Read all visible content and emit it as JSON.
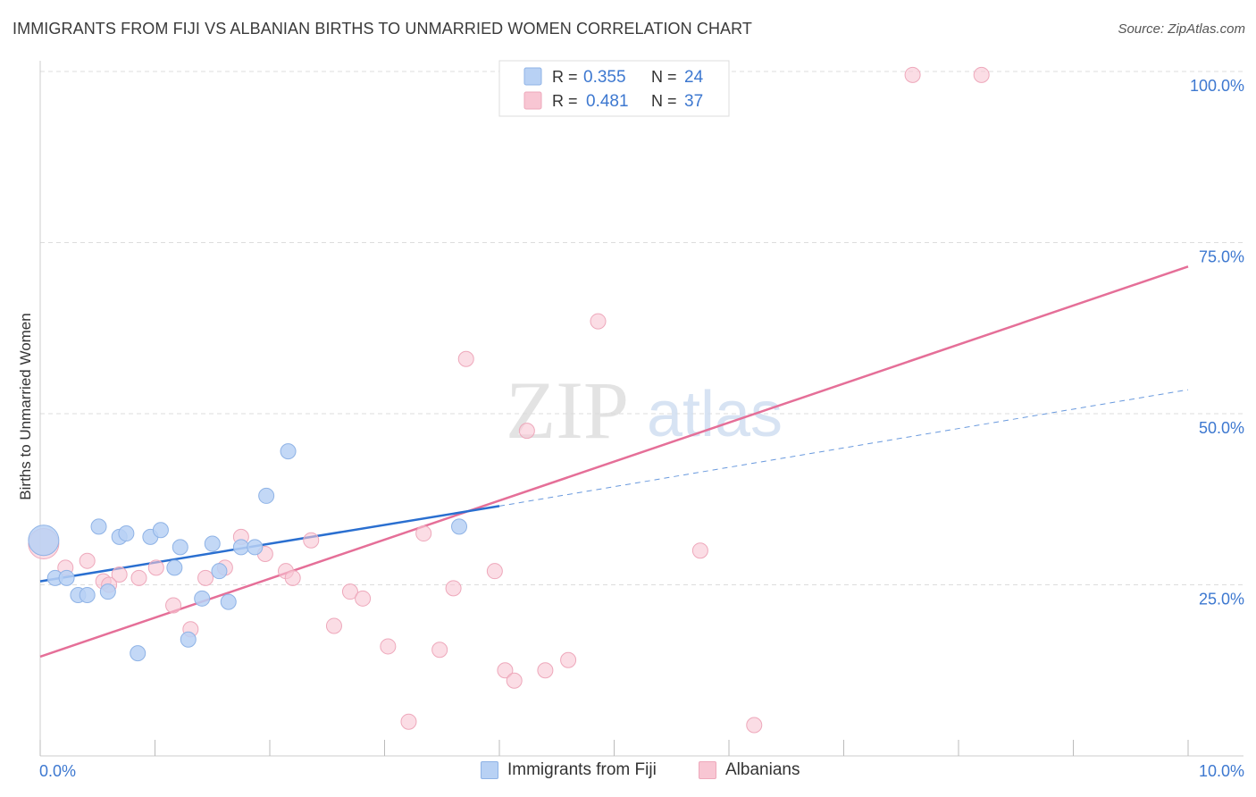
{
  "header": {
    "title": "IMMIGRANTS FROM FIJI VS ALBANIAN BIRTHS TO UNMARRIED WOMEN CORRELATION CHART",
    "source": "Source: ZipAtlas.com"
  },
  "watermark": {
    "zip": "ZIP",
    "atlas": "atlas"
  },
  "colors": {
    "fiji_fill": "#b8d1f4",
    "fiji_stroke": "#8fb3e6",
    "fiji_line": "#2a6fd0",
    "alb_fill": "#f8c6d3",
    "alb_stroke": "#eea8bb",
    "alb_line": "#e56f98",
    "value_blue": "#3d78d0",
    "axis_label": "#3d78d0",
    "grid": "#dddddd"
  },
  "legend": {
    "rows": [
      {
        "r_label": "R =",
        "r_value": "0.355",
        "n_label": "N =",
        "n_value": "24"
      },
      {
        "r_label": "R =",
        "r_value": "0.481",
        "n_label": "N =",
        "n_value": "37"
      }
    ]
  },
  "chart_data": {
    "type": "scatter",
    "title": "IMMIGRANTS FROM FIJI VS ALBANIAN BIRTHS TO UNMARRIED WOMEN CORRELATION CHART",
    "xlabel": "",
    "ylabel": "Births to Unmarried Women",
    "xlim": [
      0,
      10
    ],
    "ylim": [
      0,
      100
    ],
    "x_tick_labels": [
      "0.0%",
      "10.0%"
    ],
    "y_tick_labels": [
      "25.0%",
      "50.0%",
      "75.0%",
      "100.0%"
    ],
    "y_ticks": [
      25,
      50,
      75,
      100
    ],
    "grid": true,
    "legend_position": "top-center",
    "series": [
      {
        "name": "Immigrants from Fiji",
        "R": 0.355,
        "N": 24,
        "trend": {
          "x": [
            0,
            4.0
          ],
          "y": [
            25.5,
            36.5
          ],
          "dashed_to": [
            10.0,
            53.5
          ]
        },
        "points": [
          {
            "x": 0.03,
            "y": 31.5,
            "big": true
          },
          {
            "x": 0.13,
            "y": 26.0
          },
          {
            "x": 0.23,
            "y": 26.0
          },
          {
            "x": 0.33,
            "y": 23.5
          },
          {
            "x": 0.41,
            "y": 23.5
          },
          {
            "x": 0.51,
            "y": 33.5
          },
          {
            "x": 0.59,
            "y": 24.0
          },
          {
            "x": 0.69,
            "y": 32.0
          },
          {
            "x": 0.75,
            "y": 32.5
          },
          {
            "x": 0.85,
            "y": 15.0
          },
          {
            "x": 0.96,
            "y": 32.0
          },
          {
            "x": 1.05,
            "y": 33.0
          },
          {
            "x": 1.17,
            "y": 27.5
          },
          {
            "x": 1.22,
            "y": 30.5
          },
          {
            "x": 1.29,
            "y": 17.0
          },
          {
            "x": 1.41,
            "y": 23.0
          },
          {
            "x": 1.5,
            "y": 31.0
          },
          {
            "x": 1.56,
            "y": 27.0
          },
          {
            "x": 1.64,
            "y": 22.5
          },
          {
            "x": 1.75,
            "y": 30.5
          },
          {
            "x": 1.87,
            "y": 30.5
          },
          {
            "x": 1.97,
            "y": 38.0
          },
          {
            "x": 2.16,
            "y": 44.5
          },
          {
            "x": 3.65,
            "y": 33.5
          }
        ]
      },
      {
        "name": "Albanians",
        "R": 0.481,
        "N": 37,
        "trend": {
          "x": [
            0,
            10.0
          ],
          "y": [
            14.5,
            71.5
          ]
        },
        "points": [
          {
            "x": 0.03,
            "y": 31.0,
            "big": true
          },
          {
            "x": 0.22,
            "y": 27.5
          },
          {
            "x": 0.41,
            "y": 28.5
          },
          {
            "x": 0.55,
            "y": 25.5
          },
          {
            "x": 0.69,
            "y": 26.5
          },
          {
            "x": 0.86,
            "y": 26.0
          },
          {
            "x": 1.01,
            "y": 27.5
          },
          {
            "x": 1.16,
            "y": 22.0
          },
          {
            "x": 1.31,
            "y": 18.5
          },
          {
            "x": 1.44,
            "y": 26.0
          },
          {
            "x": 1.61,
            "y": 27.5
          },
          {
            "x": 1.75,
            "y": 32.0
          },
          {
            "x": 1.96,
            "y": 29.5
          },
          {
            "x": 2.14,
            "y": 27.0
          },
          {
            "x": 2.2,
            "y": 26.0
          },
          {
            "x": 2.36,
            "y": 31.5
          },
          {
            "x": 2.56,
            "y": 19.0
          },
          {
            "x": 2.7,
            "y": 24.0
          },
          {
            "x": 2.81,
            "y": 23.0
          },
          {
            "x": 3.03,
            "y": 16.0
          },
          {
            "x": 3.21,
            "y": 5.0
          },
          {
            "x": 3.34,
            "y": 32.5
          },
          {
            "x": 3.48,
            "y": 15.5
          },
          {
            "x": 3.6,
            "y": 24.5
          },
          {
            "x": 3.71,
            "y": 58.0
          },
          {
            "x": 3.96,
            "y": 27.0
          },
          {
            "x": 4.05,
            "y": 12.5
          },
          {
            "x": 4.13,
            "y": 11.0
          },
          {
            "x": 4.24,
            "y": 47.5
          },
          {
            "x": 4.4,
            "y": 12.5
          },
          {
            "x": 4.6,
            "y": 14.0
          },
          {
            "x": 4.86,
            "y": 63.5
          },
          {
            "x": 5.75,
            "y": 30.0
          },
          {
            "x": 6.22,
            "y": 4.5
          },
          {
            "x": 7.6,
            "y": 99.5
          },
          {
            "x": 8.2,
            "y": 99.5
          },
          {
            "x": 0.6,
            "y": 25.0
          }
        ]
      }
    ]
  }
}
